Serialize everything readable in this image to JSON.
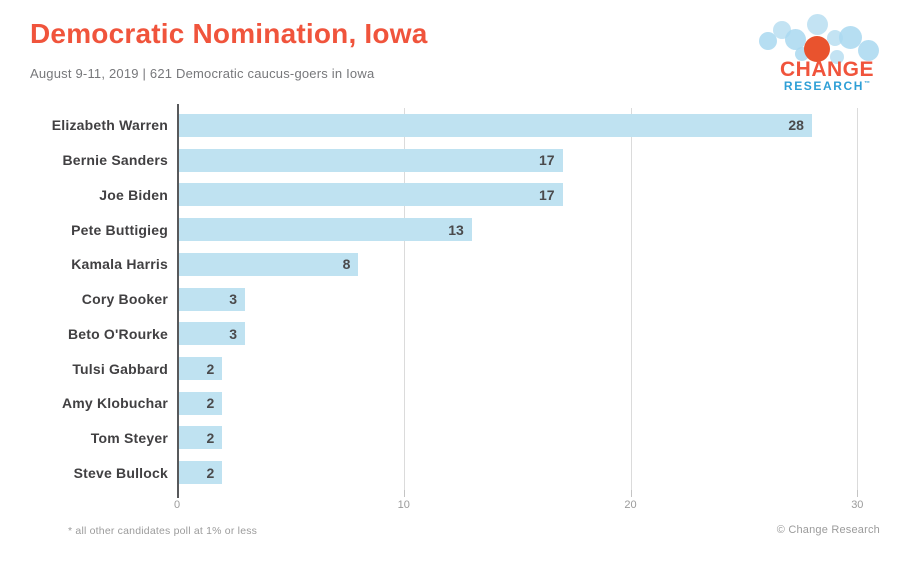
{
  "header": {
    "title": "Democratic Nomination, Iowa",
    "subtitle": "August 9-11, 2019  | 621 Democratic caucus-goers in Iowa"
  },
  "logo": {
    "line1": "CHANGE",
    "line2": "RESEARCH",
    "trademark": "™"
  },
  "chart_data": {
    "type": "bar",
    "orientation": "horizontal",
    "title": "Democratic Nomination, Iowa",
    "categories": [
      "Elizabeth Warren",
      "Bernie Sanders",
      "Joe Biden",
      "Pete Buttigieg",
      "Kamala Harris",
      "Cory Booker",
      "Beto O'Rourke",
      "Tulsi Gabbard",
      "Amy Klobuchar",
      "Tom Steyer",
      "Steve Bullock"
    ],
    "values": [
      28,
      17,
      17,
      13,
      8,
      3,
      3,
      2,
      2,
      2,
      2
    ],
    "value_unit": "percent",
    "x_ticks": [
      0,
      10,
      20,
      30
    ],
    "xlim": [
      0,
      31
    ],
    "grid": "vertical",
    "legend": "none",
    "value_labels_inside_bar": true,
    "bar_color": "#BFE2F1"
  },
  "footer": {
    "footnote": "* all other candidates poll at 1% or less",
    "copyright": "© Change Research"
  },
  "colors": {
    "title_orange": "#F0543C",
    "research_blue": "#2E9FD6",
    "bar_blue": "#BFE2F1",
    "bubble_blue": "#A9D8F0",
    "bubble_orange": "#E9532E",
    "label_dark": "#414042",
    "muted_gray": "#9B9B9B"
  }
}
